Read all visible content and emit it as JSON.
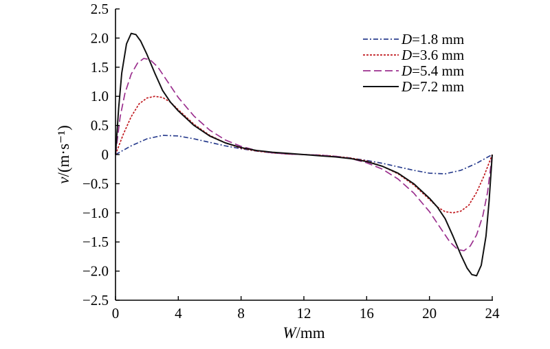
{
  "chart_data": {
    "type": "line",
    "xlabel": "W/mm",
    "ylabel": "v/(m·s⁻¹)",
    "xlim": [
      0,
      24
    ],
    "ylim": [
      -2.5,
      2.5
    ],
    "xticks": [
      0,
      4,
      8,
      12,
      16,
      20,
      24
    ],
    "yticks": [
      2.5,
      2.0,
      1.5,
      1.0,
      0.5,
      0,
      -0.5,
      -1.0,
      -1.5,
      -2.0,
      -2.5
    ],
    "xtick_labels": [
      "0",
      "4",
      "8",
      "12",
      "16",
      "20",
      "24"
    ],
    "ytick_labels": [
      "2.5",
      "2.0",
      "1.5",
      "1.0",
      "0.5",
      "0",
      "−0.5",
      "−1.0",
      "−1.5",
      "−2.0",
      "−2.5"
    ],
    "grid": false,
    "legend_position": "top-right",
    "series": [
      {
        "name": "D=1.8 mm",
        "color": "#2b3f8f",
        "dash": "dashdot",
        "x": [
          0,
          1,
          2,
          3,
          4,
          5,
          6,
          7,
          8,
          9,
          10,
          11,
          12,
          13,
          14,
          15,
          16,
          17,
          18,
          19,
          20,
          21,
          22,
          23,
          24
        ],
        "y": [
          0,
          0.15,
          0.27,
          0.33,
          0.32,
          0.27,
          0.21,
          0.15,
          0.1,
          0.06,
          0.03,
          0.01,
          0,
          -0.01,
          -0.03,
          -0.06,
          -0.1,
          -0.15,
          -0.21,
          -0.27,
          -0.32,
          -0.33,
          -0.27,
          -0.15,
          0
        ]
      },
      {
        "name": "D=3.6 mm",
        "color": "#c0191e",
        "dash": "short-dash",
        "x": [
          0,
          0.5,
          1,
          1.5,
          2,
          2.5,
          3,
          3.5,
          4,
          5,
          6,
          7,
          8,
          9,
          10,
          11,
          12,
          13,
          14,
          15,
          16,
          17,
          18,
          19,
          20,
          20.5,
          21,
          21.5,
          22,
          22.5,
          23,
          23.5,
          24
        ],
        "y": [
          0,
          0.35,
          0.65,
          0.87,
          0.97,
          1.0,
          0.98,
          0.9,
          0.77,
          0.52,
          0.33,
          0.2,
          0.11,
          0.06,
          0.03,
          0.01,
          0,
          -0.01,
          -0.03,
          -0.06,
          -0.11,
          -0.2,
          -0.33,
          -0.52,
          -0.77,
          -0.9,
          -0.98,
          -1.0,
          -0.97,
          -0.87,
          -0.65,
          -0.35,
          0
        ]
      },
      {
        "name": "D=5.4 mm",
        "color": "#9b2f8e",
        "dash": "long-dash",
        "x": [
          0,
          0.3,
          0.6,
          1,
          1.4,
          1.8,
          2.2,
          2.7,
          3.2,
          4,
          5,
          6,
          7,
          8,
          9,
          10,
          11,
          12,
          13,
          14,
          15,
          16,
          17,
          18,
          19,
          20,
          20.8,
          21.3,
          21.8,
          22.2,
          22.6,
          23,
          23.4,
          23.7,
          24
        ],
        "y": [
          0,
          0.65,
          1.05,
          1.38,
          1.57,
          1.65,
          1.63,
          1.5,
          1.3,
          0.98,
          0.66,
          0.42,
          0.25,
          0.14,
          0.07,
          0.03,
          0.01,
          0,
          -0.01,
          -0.03,
          -0.07,
          -0.14,
          -0.25,
          -0.42,
          -0.66,
          -0.98,
          -1.3,
          -1.5,
          -1.63,
          -1.65,
          -1.57,
          -1.38,
          -1.05,
          -0.65,
          0
        ]
      },
      {
        "name": "D=7.2 mm",
        "color": "#111111",
        "dash": "solid",
        "x": [
          0,
          0.2,
          0.4,
          0.7,
          1,
          1.3,
          1.6,
          2,
          2.5,
          3,
          3.5,
          4,
          5,
          6,
          7,
          8,
          9,
          10,
          11,
          12,
          13,
          14,
          15,
          16,
          17,
          18,
          19,
          20,
          20.5,
          21,
          21.5,
          22,
          22.4,
          22.7,
          23,
          23.3,
          23.6,
          23.8,
          24
        ],
        "y": [
          0,
          0.8,
          1.4,
          1.9,
          2.08,
          2.06,
          1.95,
          1.72,
          1.4,
          1.1,
          0.9,
          0.75,
          0.5,
          0.32,
          0.2,
          0.12,
          0.07,
          0.04,
          0.02,
          0,
          -0.02,
          -0.04,
          -0.07,
          -0.12,
          -0.2,
          -0.32,
          -0.5,
          -0.75,
          -0.9,
          -1.1,
          -1.4,
          -1.72,
          -1.95,
          -2.06,
          -2.08,
          -1.9,
          -1.4,
          -0.8,
          0
        ]
      }
    ]
  }
}
